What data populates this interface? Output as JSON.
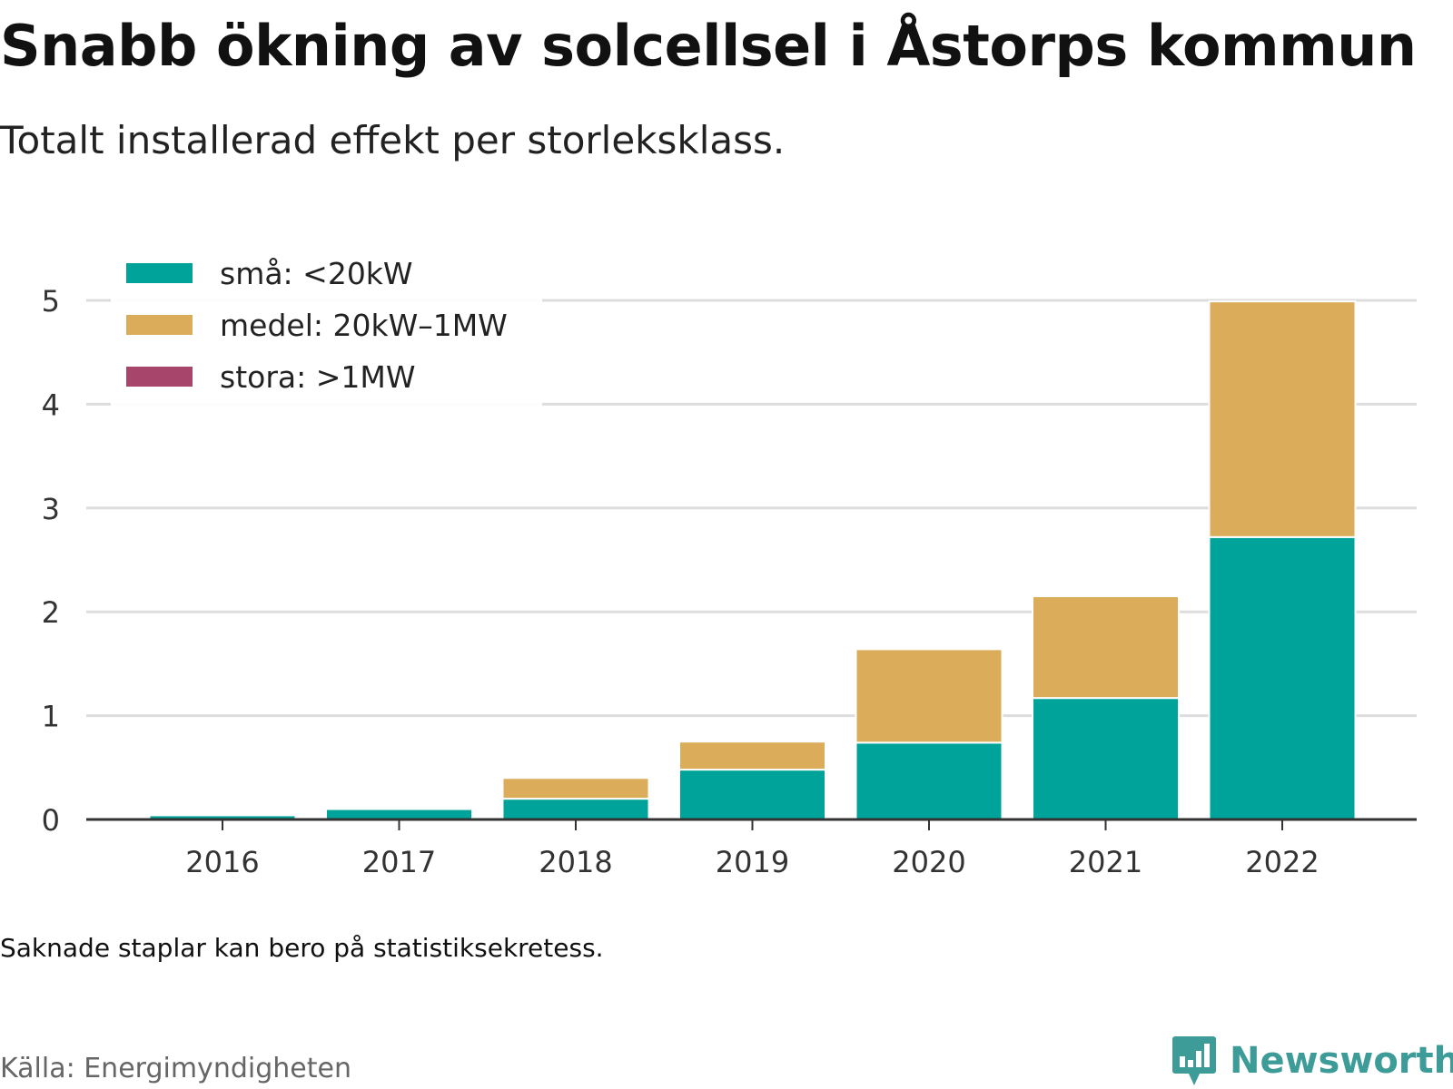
{
  "title": "Snabb ökning av solcellsel i Åstorps kommun",
  "subtitle": "Totalt installerad effekt per storleksklass.",
  "note": "Saknade staplar kan bero på statistiksekretess.",
  "source": "Källa: Energimyndigheten",
  "brand": {
    "name": "Newsworthy",
    "icon": "newsworthy-logo-icon",
    "color": "#3d9c98"
  },
  "chart_data": {
    "type": "bar",
    "stacked": true,
    "categories": [
      "2016",
      "2017",
      "2018",
      "2019",
      "2020",
      "2021",
      "2022"
    ],
    "series": [
      {
        "name": "små: <20kW",
        "color": "#00a39a",
        "values": [
          0.04,
          0.1,
          0.2,
          0.48,
          0.74,
          1.17,
          2.72
        ]
      },
      {
        "name": "medel: 20kW–1MW",
        "color": "#dbad5b",
        "values": [
          0.0,
          0.0,
          0.2,
          0.27,
          0.9,
          0.98,
          2.27
        ]
      },
      {
        "name": "stora: >1MW",
        "color": "#a8456b",
        "values": [
          0,
          0,
          0,
          0,
          0,
          0,
          0
        ]
      }
    ],
    "yticks": [
      0,
      1,
      2,
      3,
      4,
      5
    ],
    "ylim": [
      0,
      5
    ],
    "grid": true,
    "legend_position": "top-left"
  }
}
